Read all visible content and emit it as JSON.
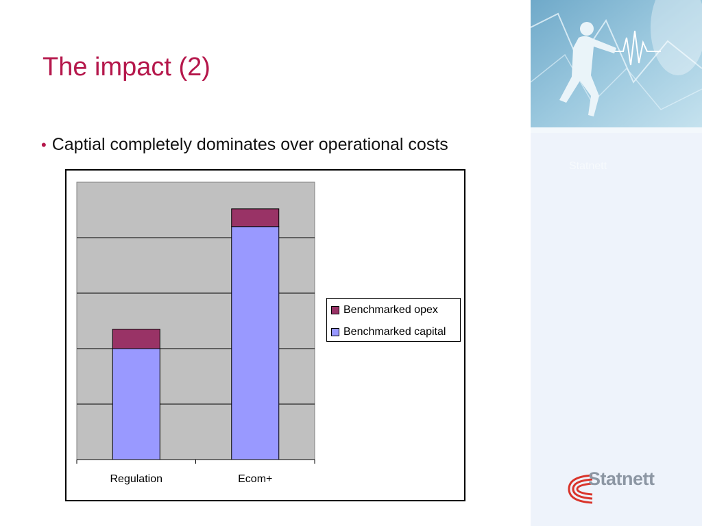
{
  "slide": {
    "title": "The impact (2)",
    "bullet": "Captial completely dominates over operational costs"
  },
  "branding": {
    "panel_text": "Statnett",
    "logo_text": "Statnett",
    "logo_accent": "#d9342b",
    "title_color": "#b5174b"
  },
  "chart_data": {
    "type": "bar",
    "stacked": true,
    "categories": [
      "Regulation",
      "Ecom+"
    ],
    "series": [
      {
        "name": "Benchmarked capital",
        "values": [
          2.0,
          4.2
        ],
        "color": "#9999ff"
      },
      {
        "name": "Benchmarked opex",
        "values": [
          0.35,
          0.32
        ],
        "color": "#993366"
      }
    ],
    "ylim": [
      0,
      5
    ],
    "gridlines": true,
    "plot_background": "#c0c0c0",
    "legend_position": "right",
    "title": "",
    "xlabel": "",
    "ylabel": ""
  }
}
